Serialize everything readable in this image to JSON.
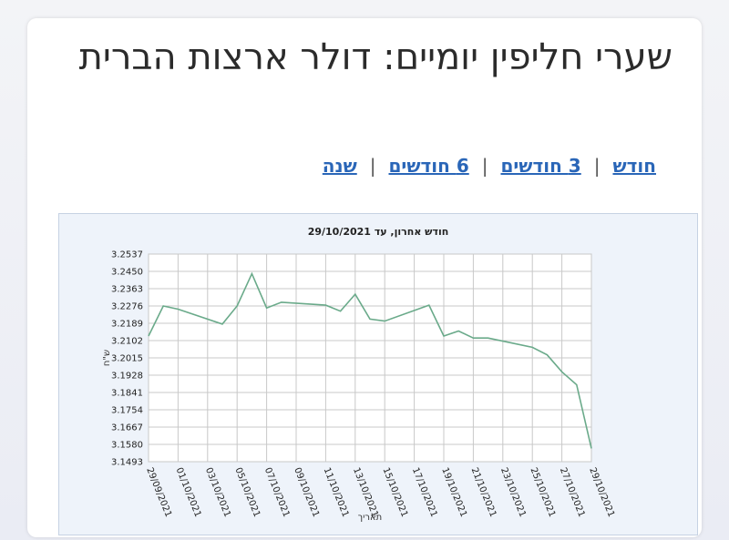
{
  "page": {
    "title": "שערי חליפין יומיים: דולר ארצות הברית"
  },
  "periods": [
    {
      "label": "חודש"
    },
    {
      "label": "3 חודשים"
    },
    {
      "label": "6 חודשים"
    },
    {
      "label": "שנה"
    }
  ],
  "colors": {
    "line": "#6aaa8a",
    "grid": "#c8c8c8",
    "plot_bg": "#ffffff",
    "frame_bg": "#eef3fa",
    "link": "#2a66b8"
  },
  "chart_data": {
    "type": "line",
    "title": "חודש אחרון,  עד 29/10/2021",
    "xlabel": "תאריך",
    "ylabel": "ש\"ח",
    "ylim": [
      3.1493,
      3.2537
    ],
    "yticks": [
      3.1493,
      3.158,
      3.1667,
      3.1754,
      3.1841,
      3.1928,
      3.2015,
      3.2102,
      3.2189,
      3.2276,
      3.2363,
      3.245,
      3.2537
    ],
    "xlim": [
      "29/09/2021",
      "29/10/2021"
    ],
    "xticks": [
      "29/09/2021",
      "01/10/2021",
      "03/10/2021",
      "05/10/2021",
      "07/10/2021",
      "09/10/2021",
      "11/10/2021",
      "13/10/2021",
      "15/10/2021",
      "17/10/2021",
      "19/10/2021",
      "21/10/2021",
      "23/10/2021",
      "25/10/2021",
      "27/10/2021",
      "29/10/2021"
    ],
    "grid": true,
    "legend": "none",
    "series": [
      {
        "x": [
          "29/09/2021",
          "30/09/2021",
          "01/10/2021",
          "04/10/2021",
          "05/10/2021",
          "06/10/2021",
          "07/10/2021",
          "08/10/2021",
          "11/10/2021",
          "12/10/2021",
          "13/10/2021",
          "14/10/2021",
          "15/10/2021",
          "18/10/2021",
          "19/10/2021",
          "20/10/2021",
          "21/10/2021",
          "22/10/2021",
          "25/10/2021",
          "26/10/2021",
          "27/10/2021",
          "28/10/2021",
          "29/10/2021"
        ],
        "y": [
          3.2125,
          3.2276,
          3.226,
          3.2185,
          3.2276,
          3.2438,
          3.2266,
          3.2295,
          3.228,
          3.225,
          3.2335,
          3.221,
          3.22,
          3.228,
          3.2125,
          3.215,
          3.2115,
          3.2115,
          3.2068,
          3.203,
          3.1945,
          3.188,
          3.156
        ]
      }
    ]
  }
}
